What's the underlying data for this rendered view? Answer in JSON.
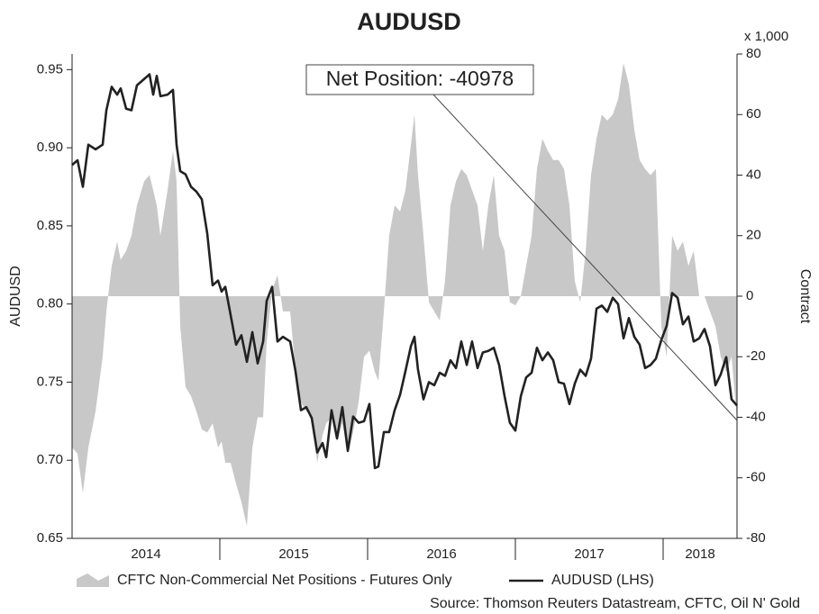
{
  "chart_data": {
    "type": "line_area",
    "title": "AUDUSD",
    "ylabel": "AUDUSD",
    "y2label": "Contract",
    "y2unit": "x 1,000",
    "annotation": "Net Position: -40978",
    "source": "Source: Thomson Reuters Datastream, CFTC, Oil N' Gold",
    "xlim": [
      2014.0,
      2018.5
    ],
    "xtick_marks": [
      2015,
      2016,
      2017,
      2018
    ],
    "xtick_labels": [
      {
        "value": 2014.5,
        "label": "2014"
      },
      {
        "value": 2015.5,
        "label": "2015"
      },
      {
        "value": 2016.5,
        "label": "2016"
      },
      {
        "value": 2017.5,
        "label": "2017"
      },
      {
        "value": 2018.25,
        "label": "2018"
      }
    ],
    "ylim": [
      0.65,
      0.96
    ],
    "yticks": [
      0.65,
      {
        "value": 0.7,
        "label": "0.70"
      },
      0.75,
      {
        "value": 0.8,
        "label": "0.80"
      },
      0.85,
      {
        "value": 0.9,
        "label": "0.90"
      },
      0.95
    ],
    "y2lim": [
      -80,
      80
    ],
    "y2ticks": [
      -80,
      -60,
      -40,
      -20,
      0,
      20,
      40,
      60,
      80
    ],
    "x": [
      2014.0,
      2014.037,
      2014.073,
      2014.11,
      2014.159,
      2014.207,
      2014.232,
      2014.268,
      2014.305,
      2014.329,
      2014.366,
      2014.402,
      2014.439,
      2014.488,
      2014.524,
      2014.549,
      2014.573,
      2014.598,
      2014.646,
      2014.683,
      2014.707,
      2014.732,
      2014.768,
      2014.805,
      2014.841,
      2014.878,
      2014.915,
      2014.951,
      2014.988,
      2015.012,
      2015.037,
      2015.073,
      2015.11,
      2015.146,
      2015.183,
      2015.22,
      2015.256,
      2015.293,
      2015.317,
      2015.354,
      2015.39,
      2015.427,
      2015.476,
      2015.512,
      2015.549,
      2015.585,
      2015.622,
      2015.659,
      2015.695,
      2015.72,
      2015.756,
      2015.793,
      2015.829,
      2015.866,
      2015.902,
      2015.939,
      2015.976,
      2016.012,
      2016.049,
      2016.073,
      2016.11,
      2016.146,
      2016.183,
      2016.22,
      2016.256,
      2016.293,
      2016.317,
      2016.341,
      2016.378,
      2016.415,
      2016.451,
      2016.488,
      2016.524,
      2016.561,
      2016.598,
      2016.634,
      2016.671,
      2016.707,
      2016.744,
      2016.78,
      2016.817,
      2016.854,
      2016.89,
      2016.927,
      2016.963,
      2017.0,
      2017.037,
      2017.073,
      2017.11,
      2017.146,
      2017.183,
      2017.22,
      2017.256,
      2017.293,
      2017.329,
      2017.366,
      2017.402,
      2017.439,
      2017.476,
      2017.512,
      2017.549,
      2017.585,
      2017.622,
      2017.659,
      2017.695,
      2017.732,
      2017.768,
      2017.805,
      2017.841,
      2017.878,
      2017.915,
      2017.951,
      2017.988,
      2018.024,
      2018.061,
      2018.098,
      2018.134,
      2018.171,
      2018.207,
      2018.244,
      2018.28,
      2018.317,
      2018.354,
      2018.39,
      2018.427,
      2018.463,
      2018.5
    ],
    "series": [
      {
        "name": "CFTC Non-Commercial Net Positions - Futures Only",
        "color": "#c8c8c8",
        "axis": "y2",
        "kind": "area",
        "values": [
          -50,
          -52,
          -65,
          -50,
          -38,
          -20,
          -5,
          10,
          18,
          12,
          15,
          20,
          30,
          38,
          40,
          35,
          30,
          20,
          35,
          48,
          38,
          -10,
          -30,
          -33,
          -38,
          -44,
          -45,
          -42,
          -50,
          -48,
          -55,
          -55,
          -62,
          -68,
          -76,
          -50,
          -40,
          -40,
          -15,
          2,
          7,
          -5,
          -5,
          -25,
          -35,
          -38,
          -40,
          -55,
          -46,
          -42,
          -40,
          -48,
          -42,
          -52,
          -45,
          -35,
          -20,
          -18,
          -25,
          -28,
          -5,
          20,
          30,
          28,
          35,
          50,
          60,
          40,
          20,
          -2,
          -5,
          -8,
          5,
          30,
          38,
          42,
          40,
          35,
          30,
          15,
          30,
          40,
          20,
          15,
          -2,
          -3,
          0,
          10,
          20,
          42,
          52,
          48,
          45,
          45,
          42,
          30,
          5,
          -2,
          15,
          40,
          52,
          60,
          58,
          60,
          65,
          77,
          70,
          55,
          45,
          42,
          40,
          42,
          -10,
          -20,
          20,
          15,
          18,
          10,
          15,
          0,
          0,
          -5,
          -10,
          -20,
          -25,
          -20,
          -41
        ]
      },
      {
        "name": "AUDUSD (LHS)",
        "color": "#222222",
        "kind": "line",
        "values": [
          0.889,
          0.892,
          0.875,
          0.902,
          0.899,
          0.902,
          0.924,
          0.939,
          0.934,
          0.938,
          0.925,
          0.924,
          0.94,
          0.944,
          0.947,
          0.934,
          0.946,
          0.933,
          0.934,
          0.937,
          0.902,
          0.885,
          0.883,
          0.875,
          0.872,
          0.867,
          0.845,
          0.812,
          0.815,
          0.808,
          0.811,
          0.793,
          0.774,
          0.78,
          0.763,
          0.782,
          0.762,
          0.776,
          0.802,
          0.811,
          0.776,
          0.779,
          0.776,
          0.757,
          0.732,
          0.734,
          0.727,
          0.705,
          0.711,
          0.702,
          0.732,
          0.714,
          0.734,
          0.706,
          0.728,
          0.724,
          0.725,
          0.736,
          0.695,
          0.696,
          0.718,
          0.718,
          0.732,
          0.742,
          0.757,
          0.773,
          0.779,
          0.758,
          0.739,
          0.75,
          0.748,
          0.756,
          0.754,
          0.764,
          0.759,
          0.776,
          0.761,
          0.776,
          0.759,
          0.769,
          0.77,
          0.772,
          0.761,
          0.741,
          0.724,
          0.719,
          0.741,
          0.753,
          0.756,
          0.772,
          0.764,
          0.769,
          0.764,
          0.75,
          0.749,
          0.736,
          0.749,
          0.758,
          0.754,
          0.765,
          0.797,
          0.799,
          0.795,
          0.804,
          0.8,
          0.778,
          0.791,
          0.779,
          0.774,
          0.759,
          0.761,
          0.765,
          0.777,
          0.786,
          0.807,
          0.804,
          0.787,
          0.792,
          0.776,
          0.778,
          0.784,
          0.773,
          0.748,
          0.755,
          0.766,
          0.739,
          0.735
        ]
      }
    ]
  }
}
